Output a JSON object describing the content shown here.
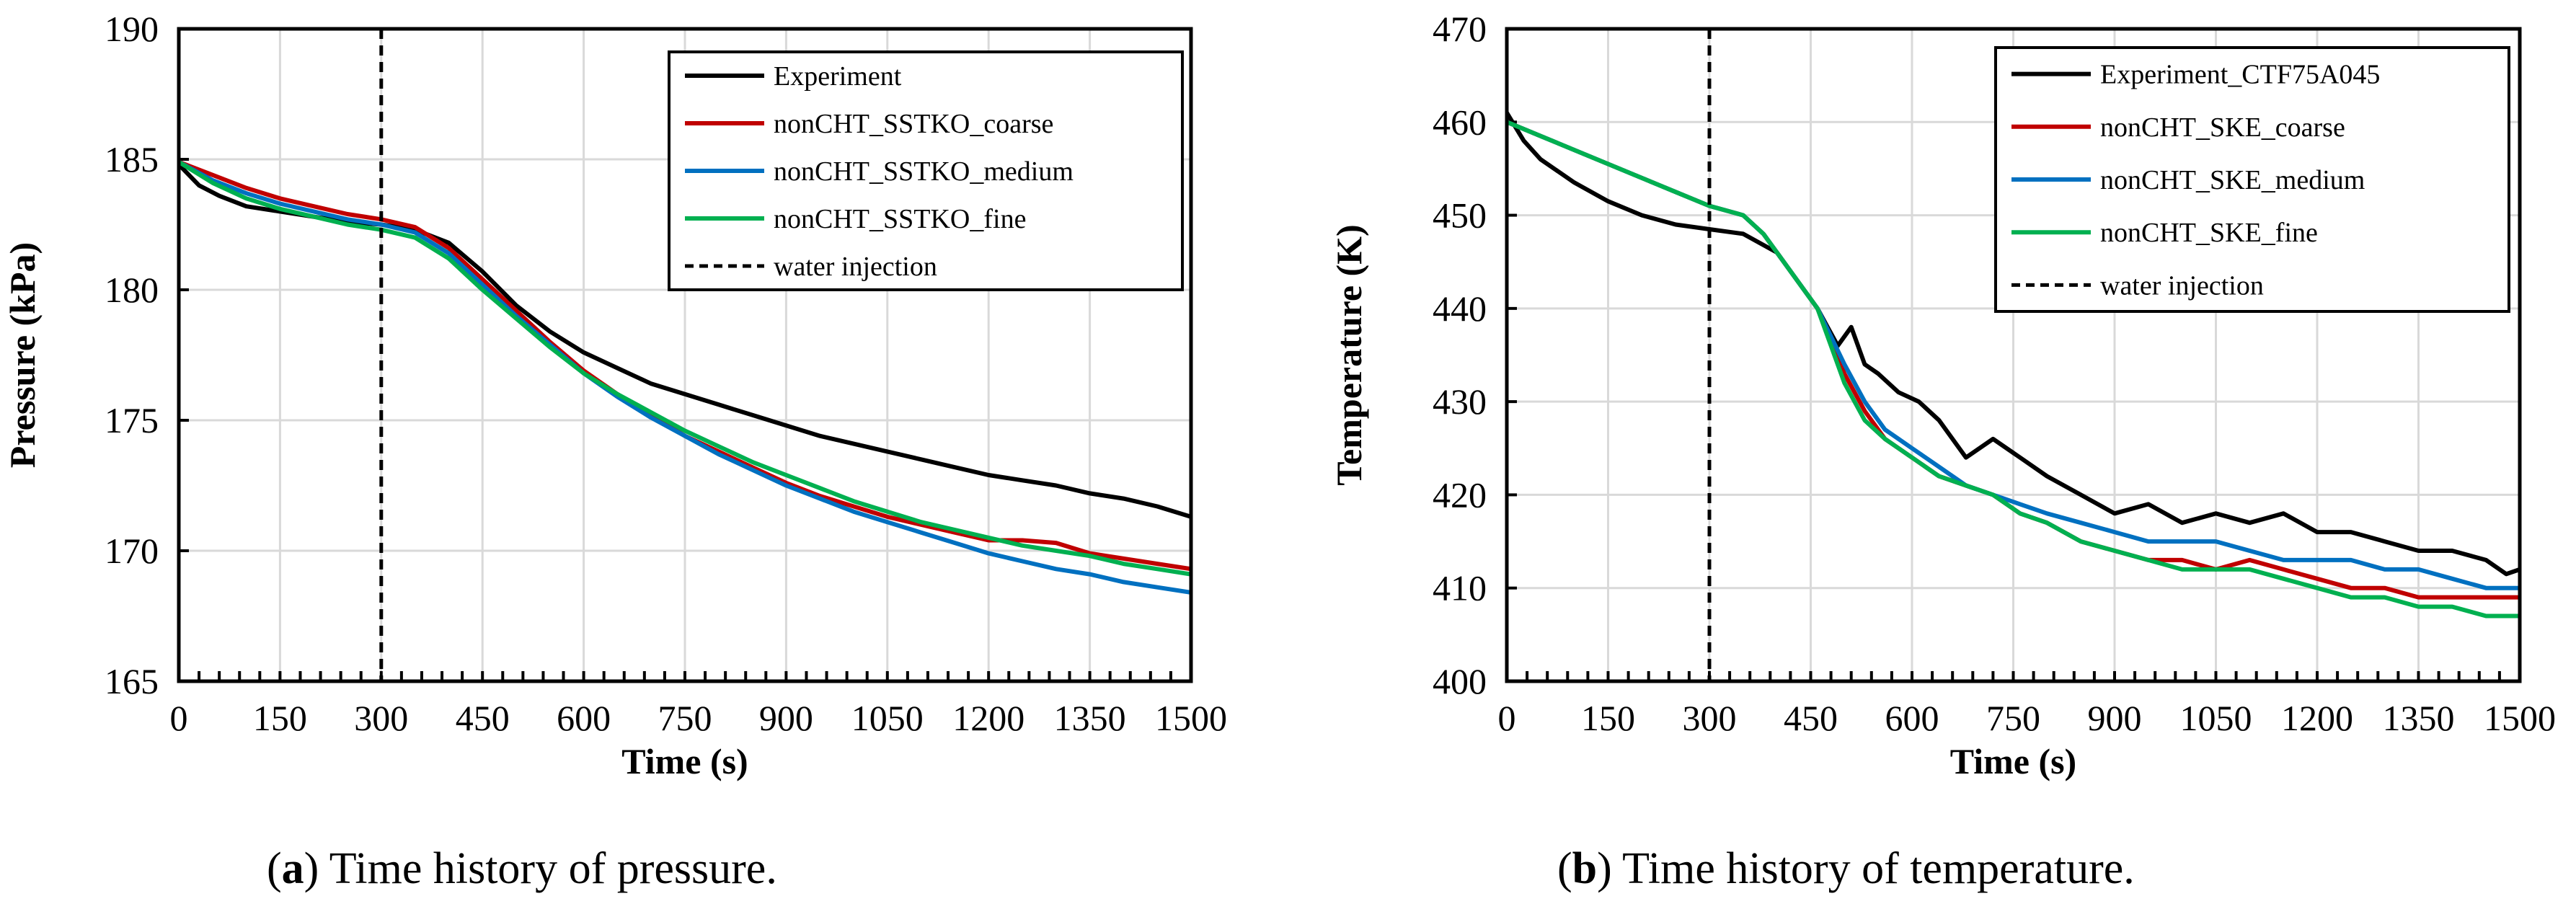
{
  "captions": [
    {
      "tag": "a",
      "text": " Time history of pressure."
    },
    {
      "tag": "b",
      "text": " Time history of temperature."
    }
  ],
  "chart_data": [
    {
      "type": "line",
      "xlabel": "Time  (s)",
      "ylabel": "Pressure  (kPa)",
      "xlim": [
        0,
        1500
      ],
      "ylim": [
        165,
        190
      ],
      "xticks": [
        0,
        150,
        300,
        450,
        600,
        750,
        900,
        1050,
        1200,
        1350,
        1500
      ],
      "yticks": [
        165,
        170,
        175,
        180,
        185,
        190
      ],
      "grid": true,
      "legend_position": "top-right",
      "vline": {
        "name": "water injection",
        "x": 300,
        "color": "#000000",
        "style": "dashed"
      },
      "series": [
        {
          "name": "Experiment",
          "color": "#000000",
          "x": [
            0,
            30,
            60,
            100,
            150,
            200,
            250,
            300,
            350,
            400,
            450,
            500,
            550,
            600,
            650,
            700,
            750,
            800,
            850,
            900,
            950,
            1000,
            1050,
            1100,
            1150,
            1200,
            1250,
            1300,
            1350,
            1400,
            1450,
            1500
          ],
          "y": [
            184.8,
            184.0,
            183.6,
            183.2,
            183.0,
            182.8,
            182.6,
            182.5,
            182.3,
            181.8,
            180.7,
            179.4,
            178.4,
            177.6,
            177.0,
            176.4,
            176.0,
            175.6,
            175.2,
            174.8,
            174.4,
            174.1,
            173.8,
            173.5,
            173.2,
            172.9,
            172.7,
            172.5,
            172.2,
            172.0,
            171.7,
            171.3
          ]
        },
        {
          "name": "nonCHT_SSTKO_coarse",
          "color": "#c00000",
          "x": [
            0,
            50,
            100,
            150,
            200,
            250,
            300,
            350,
            400,
            450,
            500,
            550,
            600,
            650,
            700,
            750,
            800,
            850,
            900,
            950,
            1000,
            1050,
            1100,
            1150,
            1200,
            1250,
            1300,
            1350,
            1400,
            1450,
            1500
          ],
          "y": [
            184.9,
            184.4,
            183.9,
            183.5,
            183.2,
            182.9,
            182.7,
            182.4,
            181.6,
            180.4,
            179.2,
            178.0,
            176.9,
            176.0,
            175.2,
            174.4,
            173.8,
            173.2,
            172.6,
            172.1,
            171.7,
            171.3,
            171.0,
            170.7,
            170.4,
            170.4,
            170.3,
            169.9,
            169.7,
            169.5,
            169.3
          ]
        },
        {
          "name": "nonCHT_SSTKO_medium",
          "color": "#0070c0",
          "x": [
            0,
            50,
            100,
            150,
            200,
            250,
            300,
            350,
            400,
            450,
            500,
            550,
            600,
            650,
            700,
            750,
            800,
            850,
            900,
            950,
            1000,
            1050,
            1100,
            1150,
            1200,
            1250,
            1300,
            1350,
            1400,
            1450,
            1500
          ],
          "y": [
            184.9,
            184.2,
            183.7,
            183.3,
            183.0,
            182.7,
            182.5,
            182.2,
            181.4,
            180.2,
            179.0,
            177.9,
            176.8,
            175.9,
            175.1,
            174.4,
            173.7,
            173.1,
            172.5,
            172.0,
            171.5,
            171.1,
            170.7,
            170.3,
            169.9,
            169.6,
            169.3,
            169.1,
            168.8,
            168.6,
            168.4
          ]
        },
        {
          "name": "nonCHT_SSTKO_fine",
          "color": "#00b050",
          "x": [
            0,
            50,
            100,
            150,
            200,
            250,
            300,
            350,
            400,
            450,
            500,
            550,
            600,
            650,
            700,
            750,
            800,
            850,
            900,
            950,
            1000,
            1050,
            1100,
            1150,
            1200,
            1250,
            1300,
            1350,
            1400,
            1450,
            1500
          ],
          "y": [
            184.9,
            184.1,
            183.5,
            183.1,
            182.8,
            182.5,
            182.3,
            182.0,
            181.2,
            180.0,
            178.9,
            177.8,
            176.8,
            176.0,
            175.3,
            174.6,
            174.0,
            173.4,
            172.9,
            172.4,
            171.9,
            171.5,
            171.1,
            170.8,
            170.5,
            170.2,
            170.0,
            169.8,
            169.5,
            169.3,
            169.1
          ]
        }
      ]
    },
    {
      "type": "line",
      "xlabel": "Time  (s)",
      "ylabel": "Temperature  (K)",
      "xlim": [
        0,
        1500
      ],
      "ylim": [
        400,
        470
      ],
      "xticks": [
        0,
        150,
        300,
        450,
        600,
        750,
        900,
        1050,
        1200,
        1350,
        1500
      ],
      "yticks": [
        400,
        410,
        420,
        430,
        440,
        450,
        460,
        470
      ],
      "grid": true,
      "legend_position": "top-right",
      "vline": {
        "name": "water injection",
        "x": 300,
        "color": "#000000",
        "style": "dashed"
      },
      "series": [
        {
          "name": "Experiment_CTF75A045",
          "color": "#000000",
          "x": [
            0,
            25,
            50,
            100,
            150,
            200,
            250,
            300,
            350,
            400,
            430,
            460,
            490,
            510,
            530,
            550,
            580,
            610,
            640,
            680,
            720,
            760,
            800,
            850,
            900,
            950,
            1000,
            1050,
            1100,
            1150,
            1200,
            1250,
            1300,
            1350,
            1400,
            1450,
            1480,
            1500
          ],
          "y": [
            461,
            458,
            456,
            453.5,
            451.5,
            450,
            449,
            448.5,
            448,
            446,
            443,
            440,
            436,
            438,
            434,
            433,
            431,
            430,
            428,
            424,
            426,
            424,
            422,
            420,
            418,
            419,
            417,
            418,
            417,
            418,
            416,
            416,
            415,
            414,
            414,
            413,
            411.5,
            412
          ]
        },
        {
          "name": "nonCHT_SKE_coarse",
          "color": "#c00000",
          "x": [
            0,
            50,
            100,
            150,
            200,
            250,
            300,
            350,
            380,
            420,
            460,
            500,
            530,
            560,
            580,
            600,
            640,
            680,
            720,
            760,
            800,
            850,
            900,
            950,
            1000,
            1050,
            1100,
            1150,
            1200,
            1250,
            1300,
            1350,
            1400,
            1450,
            1500
          ],
          "y": [
            460,
            458.5,
            457,
            455.5,
            454,
            452.5,
            451,
            450,
            448,
            444,
            440,
            433,
            429,
            426,
            425,
            424,
            422,
            421,
            420,
            418,
            417,
            415,
            414,
            413,
            413,
            412,
            413,
            412,
            411,
            410,
            410,
            409,
            409,
            409,
            409
          ]
        },
        {
          "name": "nonCHT_SKE_medium",
          "color": "#0070c0",
          "x": [
            0,
            50,
            100,
            150,
            200,
            250,
            300,
            350,
            380,
            420,
            460,
            500,
            530,
            560,
            580,
            600,
            640,
            680,
            720,
            760,
            800,
            850,
            900,
            950,
            1000,
            1050,
            1100,
            1150,
            1200,
            1250,
            1300,
            1350,
            1400,
            1450,
            1500
          ],
          "y": [
            460,
            458.5,
            457,
            455.5,
            454,
            452.5,
            451,
            450,
            448,
            444,
            440,
            434,
            430,
            427,
            426,
            425,
            423,
            421,
            420,
            419,
            418,
            417,
            416,
            415,
            415,
            415,
            414,
            413,
            413,
            413,
            412,
            412,
            411,
            410,
            410
          ]
        },
        {
          "name": "nonCHT_SKE_fine",
          "color": "#00b050",
          "x": [
            0,
            50,
            100,
            150,
            200,
            250,
            300,
            350,
            380,
            420,
            460,
            500,
            530,
            560,
            580,
            600,
            640,
            680,
            720,
            760,
            800,
            850,
            900,
            950,
            1000,
            1050,
            1100,
            1150,
            1200,
            1250,
            1300,
            1350,
            1400,
            1450,
            1500
          ],
          "y": [
            460,
            458.5,
            457,
            455.5,
            454,
            452.5,
            451,
            450,
            448,
            444,
            440,
            432,
            428,
            426,
            425,
            424,
            422,
            421,
            420,
            418,
            417,
            415,
            414,
            413,
            412,
            412,
            412,
            411,
            410,
            409,
            409,
            408,
            408,
            407,
            407
          ]
        }
      ]
    }
  ]
}
